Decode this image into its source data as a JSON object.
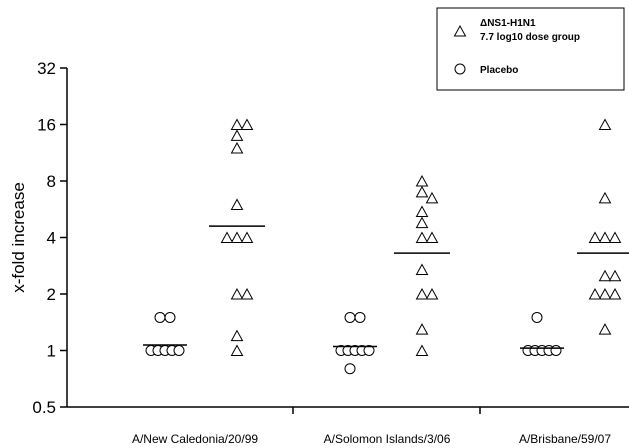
{
  "chart_data": {
    "type": "scatter",
    "ylabel": "x-fold increase",
    "yscale": "log2",
    "ylim": [
      0.5,
      32
    ],
    "yticks": [
      "0.5",
      "1",
      "2",
      "4",
      "8",
      "16",
      "32"
    ],
    "categories": [
      "A/New Caledonia/20/99",
      "A/Solomon Islands/3/06",
      "A/Brisbane/59/07"
    ],
    "legend": {
      "position": "top-right",
      "entries": [
        {
          "marker": "triangle",
          "line1": "ΔNS1-H1N1",
          "line2": "7.7 log10 dose group"
        },
        {
          "marker": "circle",
          "line1": "Placebo",
          "line2": ""
        }
      ]
    },
    "series": [
      {
        "marker": "circle",
        "groups": [
          {
            "values": [
              1.5,
              1.5,
              1,
              1,
              1,
              1,
              1
            ],
            "median": 1.07
          },
          {
            "values": [
              1.5,
              1.5,
              1,
              1,
              1,
              1,
              1,
              0.8
            ],
            "median": 1.05
          },
          {
            "values": [
              1.5,
              1,
              1,
              1,
              1,
              1
            ],
            "median": 1.03
          }
        ]
      },
      {
        "marker": "triangle",
        "groups": [
          {
            "values": [
              16,
              16,
              14,
              12,
              6,
              4,
              4,
              4,
              2,
              2,
              1.2,
              1
            ],
            "median": 4.6
          },
          {
            "values": [
              8,
              7,
              6.5,
              5.5,
              4.8,
              4,
              4,
              2.7,
              2,
              2,
              1.3,
              1
            ],
            "median": 3.3
          },
          {
            "values": [
              16,
              6.5,
              4,
              4,
              4,
              2.5,
              2.5,
              2,
              2,
              2,
              1.3
            ],
            "median": 3.3
          }
        ]
      }
    ]
  }
}
